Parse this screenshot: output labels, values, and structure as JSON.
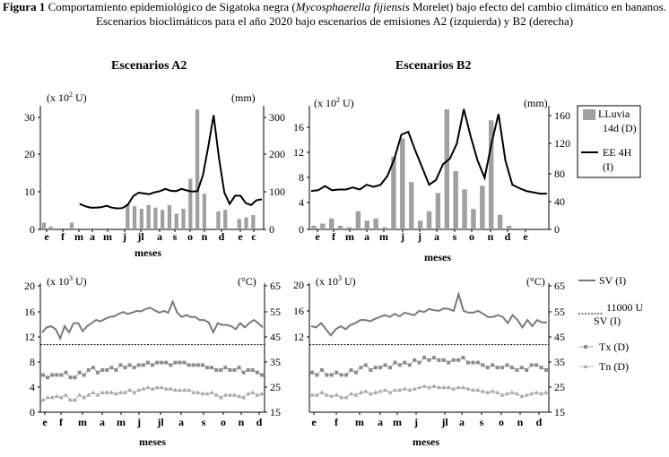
{
  "caption": {
    "fig_label": "Figura 1",
    "text_before_italic": " Comportamiento epidemiológico de Sigatoka negra (",
    "species": "Mycosphaerella fijiensis",
    "text_after_italic": " Morelet) bajo efecto del cambio climático en bananos.",
    "line2": "Escenarios bioclimáticos para el año 2020 bajo escenarios de emisiones A2 (izquierda) y B2 (derecha)"
  },
  "scenario_titles": [
    "Escenarios A2",
    "Escenarios B2"
  ],
  "legend_top": [
    {
      "label": "LLuvia 14d (D)",
      "line1": "LLuvia",
      "line2": "14d (D)",
      "kind": "bar",
      "color": "#a0a0a0"
    },
    {
      "label": "EE 4H (I)",
      "line1": "EE 4H",
      "line2": "(I)",
      "kind": "line",
      "color": "#000000"
    }
  ],
  "legend_bottom": [
    {
      "label": "SV (I)",
      "kind": "line",
      "color": "#7a7a7a"
    },
    {
      "label": "11000 U SV (I)",
      "line1": "11000 U",
      "line2": "SV (I)",
      "kind": "dashed",
      "color": "#000000"
    },
    {
      "label": "Tx (D)",
      "kind": "square-marker",
      "color": "#8c8c8c"
    },
    {
      "label": "Tn (D)",
      "kind": "triangle-marker",
      "color": "#a0a0a0"
    }
  ],
  "chart_data": [
    {
      "id": "a2_rain",
      "type": "bar+line",
      "title": "Escenarios A2",
      "xlabel": "meses",
      "x_ticks": [
        "e",
        "f",
        "m",
        "a",
        "m",
        "j",
        "jl",
        "a",
        "s",
        "o",
        "n",
        "d",
        "e",
        "c"
      ],
      "left_axis": {
        "unit_label": "(x 10² U)",
        "ticks": [
          "0",
          "10",
          "20",
          "30"
        ],
        "range": [
          0,
          33
        ]
      },
      "right_axis": {
        "unit_label": "(mm)",
        "ticks": [
          "0",
          "100",
          "200",
          "300"
        ],
        "range": [
          0,
          330
        ]
      },
      "series": [
        {
          "name": "LLuvia 14d (D)",
          "kind": "bar",
          "axis": "right",
          "values": [
            18,
            8,
            0,
            0,
            18,
            0,
            0,
            0,
            0,
            0,
            0,
            0,
            68,
            62,
            55,
            65,
            58,
            52,
            65,
            42,
            55,
            135,
            320,
            95,
            0,
            48,
            52,
            0,
            28,
            32,
            38,
            0
          ]
        },
        {
          "name": "EE 4H (I)",
          "kind": "line",
          "axis": "left",
          "start": 7,
          "values": [
            6.8,
            6.2,
            5.8,
            5.8,
            5.9,
            6.3,
            5.8,
            5.6,
            5.7,
            6.6,
            8.9,
            9.8,
            9.6,
            9.4,
            9.9,
            10.2,
            10.8,
            10.3,
            10.2,
            10.8,
            10.4,
            10.1,
            10.2,
            14.5,
            22,
            30.5,
            19,
            9.8,
            6.8,
            9,
            9,
            7,
            6.5,
            7.8,
            8
          ]
        }
      ]
    },
    {
      "id": "b2_rain",
      "type": "bar+line",
      "title": "Escenarios B2",
      "xlabel": "meses",
      "x_ticks": [
        "e",
        "f",
        "m",
        "a",
        "m",
        "j",
        "j",
        "a",
        "s",
        "o",
        "n",
        "d",
        "e"
      ],
      "left_axis": {
        "unit_label": "(x 10² U)",
        "ticks": [
          "0",
          "4",
          "8",
          "12",
          "16"
        ],
        "range": [
          0,
          18
        ]
      },
      "right_axis": {
        "unit_label": "(mm)",
        "ticks": [
          "0",
          "40",
          "80",
          "120",
          "160"
        ],
        "range": [
          0,
          170
        ]
      },
      "series": [
        {
          "name": "LLuvia 14d (D)",
          "kind": "bar",
          "axis": "right",
          "values": [
            5,
            8,
            15,
            5,
            3,
            25,
            12,
            15,
            3,
            100,
            125,
            65,
            12,
            25,
            50,
            165,
            80,
            55,
            28,
            60,
            150,
            20,
            5,
            0,
            0,
            0,
            0
          ]
        },
        {
          "name": "EE 4H (I)",
          "kind": "line",
          "axis": "left",
          "start": 0,
          "values": [
            5.6,
            5.7,
            6.3,
            5.7,
            5.8,
            5.8,
            6.1,
            5.8,
            6.5,
            6.2,
            6.5,
            7.8,
            10.3,
            13.8,
            14.2,
            11.5,
            9,
            6.5,
            7.2,
            9.5,
            10.3,
            12.5,
            17.5,
            13.5,
            10,
            7.5,
            12.5,
            16.8,
            10,
            6.5,
            6,
            5.6,
            5.4,
            5.2,
            5.2
          ]
        }
      ]
    },
    {
      "id": "a2_temp",
      "type": "line",
      "title": "",
      "xlabel": "meses",
      "x_ticks": [
        "e",
        "f",
        "m",
        "a",
        "m",
        "j",
        "jl",
        "a",
        "s",
        "o",
        "n",
        "d"
      ],
      "left_axis": {
        "unit_label": "(x 10³ U)",
        "ticks": [
          "0",
          "4",
          "8",
          "12",
          "16",
          "20"
        ],
        "range": [
          0,
          21
        ]
      },
      "right_axis": {
        "unit_label": "(°C)",
        "ticks": [
          "15",
          "25",
          "35",
          "45",
          "55",
          "65"
        ],
        "range": [
          15,
          67
        ]
      },
      "threshold": {
        "name": "11000 U SV (I)",
        "value": 11
      },
      "series": [
        {
          "name": "SV (I)",
          "kind": "line",
          "axis": "left",
          "values": [
            13,
            13.8,
            14,
            13.5,
            12,
            14,
            13,
            14.5,
            14.5,
            13.2,
            14,
            14.5,
            15,
            14.8,
            15.2,
            15.5,
            15.6,
            16,
            16.3,
            16,
            16.2,
            16.5,
            16.4,
            16.8,
            17,
            16.6,
            16.2,
            16.5,
            16.2,
            18,
            16.2,
            15.5,
            15.8,
            15.5,
            15.5,
            15,
            15,
            14.6,
            13,
            14.5,
            14.2,
            14.2,
            14,
            13.5,
            14.5,
            13.8,
            14.5,
            15,
            14.5,
            13.8
          ]
        },
        {
          "name": "Tx (D)",
          "kind": "square-marker",
          "axis": "right",
          "values": [
            30,
            29,
            30,
            30,
            30,
            31,
            29,
            29,
            31,
            30,
            32,
            33,
            31,
            32,
            32,
            33,
            32,
            34,
            33,
            34,
            33,
            34,
            34,
            35,
            34,
            35,
            35,
            35,
            34,
            35,
            35,
            35,
            34,
            34,
            34,
            34,
            33,
            33,
            32,
            32,
            33,
            32,
            32,
            33,
            31,
            32,
            32,
            31,
            30
          ]
        },
        {
          "name": "Tn (D)",
          "kind": "triangle-marker",
          "axis": "right",
          "values": [
            20,
            21,
            21,
            21.5,
            21,
            22,
            20,
            20,
            22,
            21,
            22,
            23,
            22,
            23,
            23,
            23,
            22.5,
            23,
            23,
            24,
            23,
            24,
            24.5,
            25,
            24.5,
            25,
            25,
            24.5,
            24.5,
            24,
            24,
            24,
            24,
            23,
            23,
            22.5,
            22.5,
            23,
            22,
            21,
            22,
            22,
            22,
            21.5,
            21,
            22.5,
            23,
            22,
            22.5
          ]
        }
      ]
    },
    {
      "id": "b2_temp",
      "type": "line",
      "title": "",
      "xlabel": "meses",
      "x_ticks": [
        "e",
        "f",
        "m",
        "a",
        "m",
        "j",
        "jl",
        "a",
        "s",
        "o",
        "n",
        "d"
      ],
      "left_axis": {
        "unit_label": "(x 10³ U)",
        "ticks": [
          "12",
          "16",
          "20"
        ],
        "range": [
          0,
          21
        ]
      },
      "right_axis": {
        "unit_label": "(°C)",
        "ticks": [
          "15",
          "25",
          "35",
          "45",
          "55",
          "65"
        ],
        "range": [
          15,
          67
        ]
      },
      "threshold": {
        "name": "11000 U SV (I)",
        "value": 11
      },
      "series": [
        {
          "name": "SV (I)",
          "kind": "line",
          "axis": "left",
          "values": [
            14,
            13.8,
            14.5,
            13.5,
            12.5,
            13.5,
            14,
            13.5,
            14.2,
            14.5,
            15,
            15,
            14.8,
            15.2,
            15.5,
            15.8,
            15.5,
            16,
            15.6,
            16.2,
            16,
            15.8,
            16.5,
            16.3,
            16.8,
            16.6,
            16.5,
            16.9,
            16.8,
            16.5,
            19.2,
            16.5,
            16.2,
            16.2,
            16.5,
            16,
            15.5,
            15.5,
            15.8,
            15.5,
            14.5,
            15.8,
            15,
            13.8,
            15,
            14,
            15,
            14.6,
            14.6
          ]
        },
        {
          "name": "Tx (D)",
          "kind": "square-marker",
          "axis": "right",
          "values": [
            31,
            30,
            32,
            30,
            30,
            31,
            30,
            30,
            32,
            31,
            33,
            34,
            32,
            33,
            33,
            34,
            33,
            35,
            34,
            35,
            34,
            36,
            35,
            37,
            36,
            37,
            36,
            36,
            35,
            36,
            36,
            37,
            35,
            35,
            35,
            34,
            33,
            34,
            33,
            33,
            34,
            33,
            32,
            33,
            32,
            34,
            34,
            33,
            32
          ]
        },
        {
          "name": "Tn (D)",
          "kind": "triangle-marker",
          "axis": "right",
          "values": [
            22,
            22,
            23,
            22,
            21.5,
            22,
            21,
            21,
            22.5,
            22,
            23,
            23.5,
            22.5,
            23,
            23.5,
            24,
            23,
            24,
            24,
            24.5,
            24,
            24.5,
            25,
            25.5,
            25,
            25.5,
            25,
            25,
            25,
            24.5,
            25,
            25,
            24.5,
            24,
            24,
            23.5,
            23,
            23.5,
            23,
            22,
            22.5,
            23,
            22.5,
            21.5,
            22,
            22.5,
            23,
            22.5,
            23
          ]
        }
      ]
    }
  ]
}
